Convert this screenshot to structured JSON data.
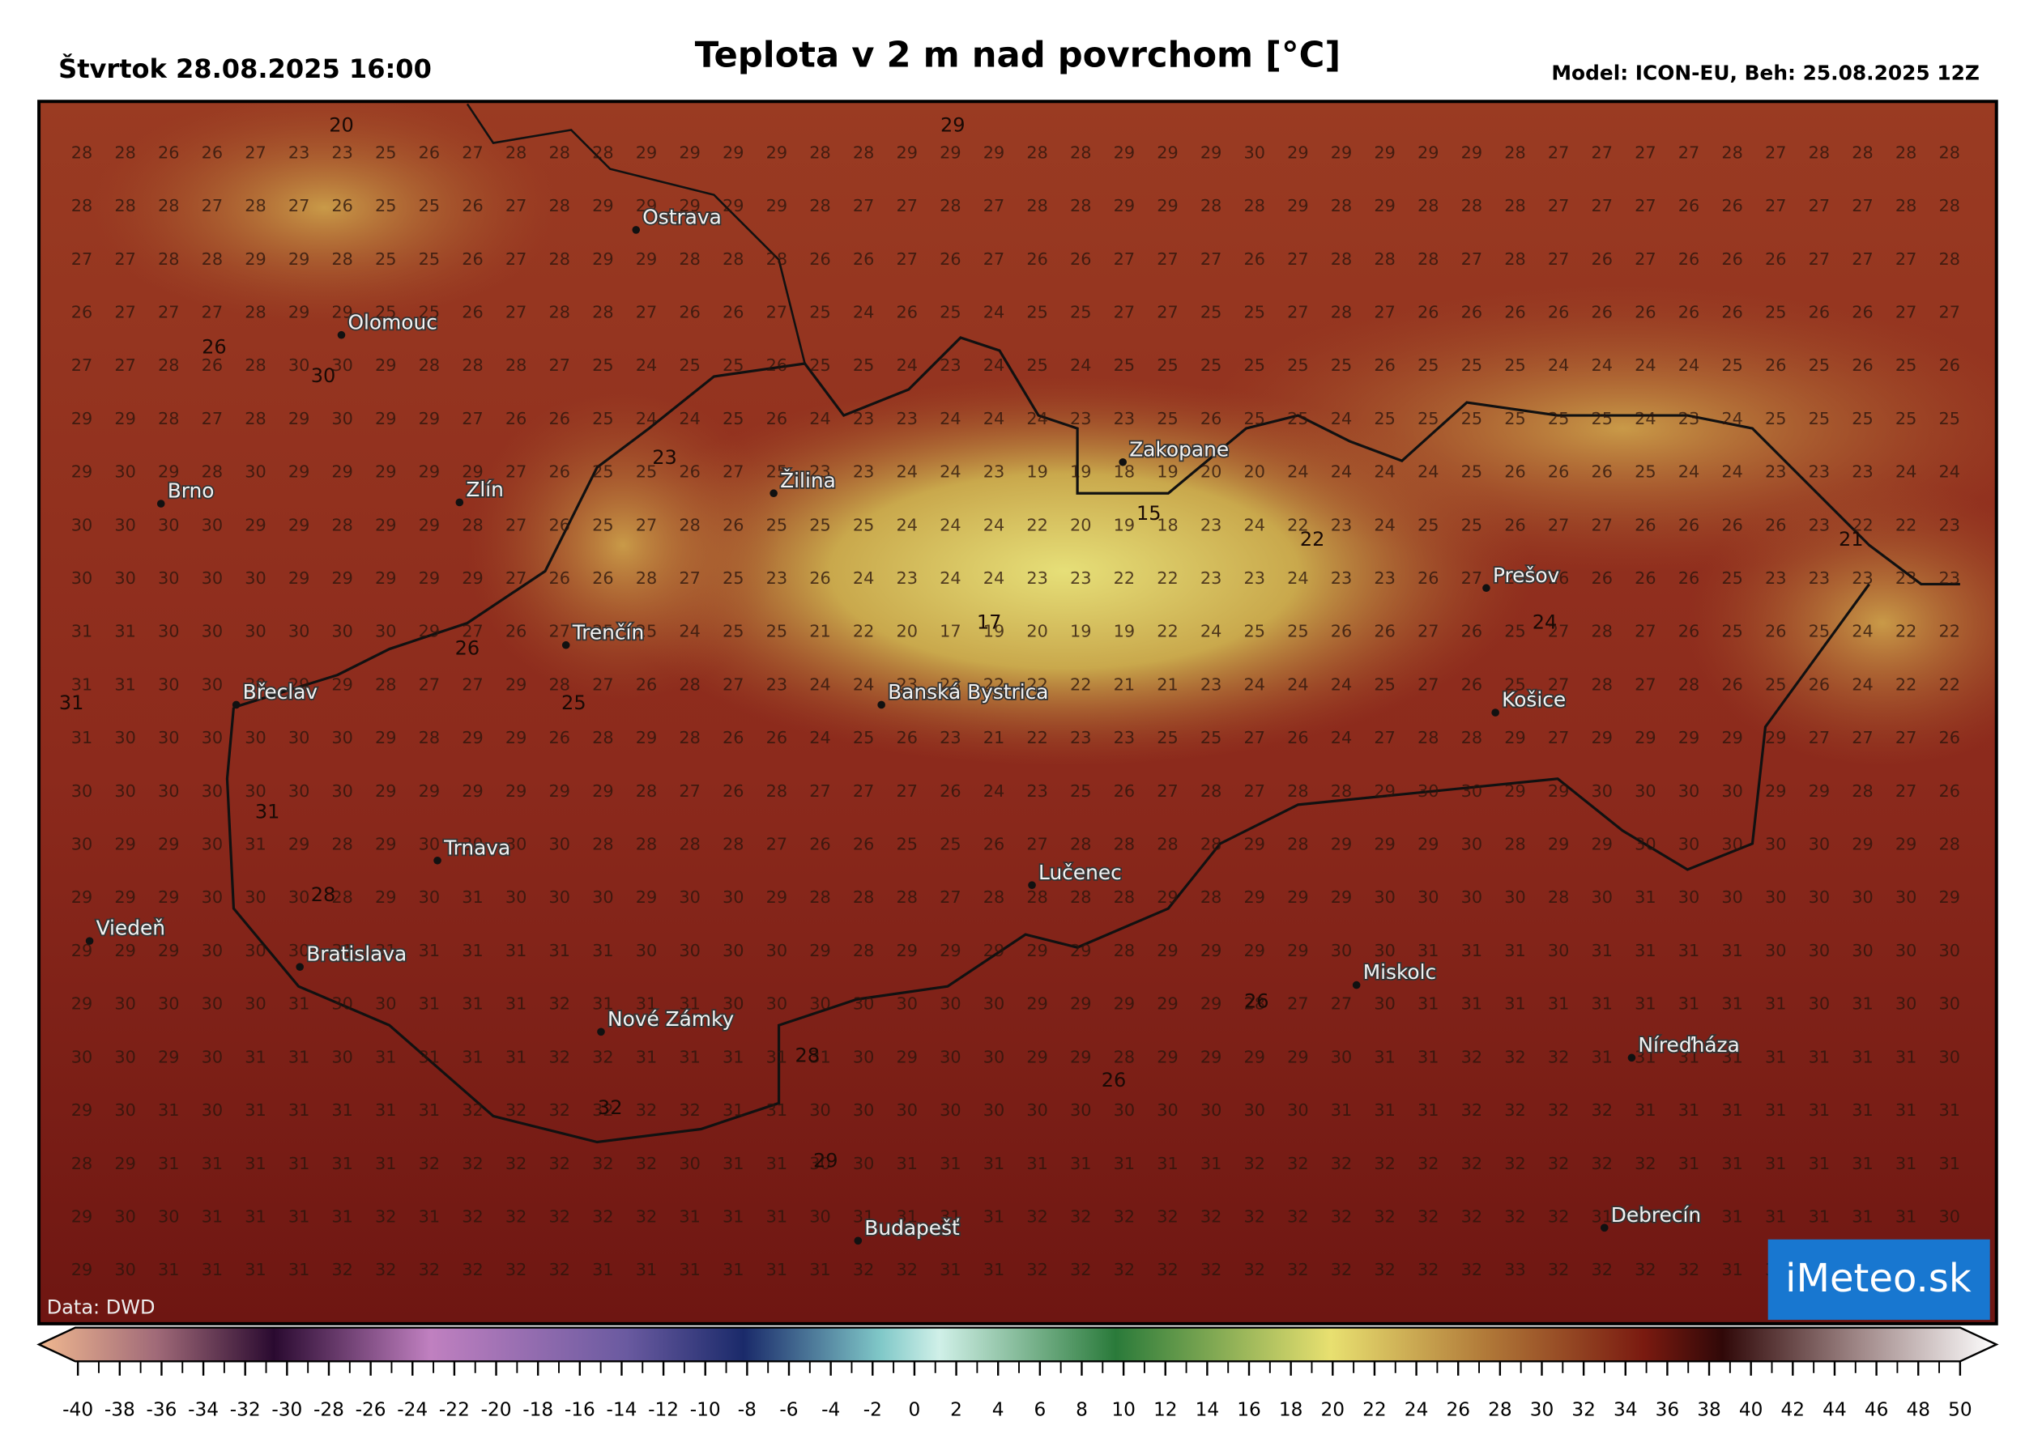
{
  "header": {
    "date": "Štvrtok 28.08.2025 16:00",
    "title": "Teplota v 2 m nad povrchom [°C]",
    "model": "Model: ICON-EU, Beh: 25.08.2025 12Z"
  },
  "map": {
    "grid": [
      [
        28,
        28,
        26,
        26,
        27,
        23,
        23,
        25,
        26,
        27,
        28,
        28,
        28,
        29,
        29,
        29,
        29,
        28,
        28,
        29,
        29,
        29,
        28,
        28,
        29,
        29,
        29,
        30,
        29,
        29,
        29,
        29,
        29,
        28,
        27,
        27,
        27,
        27,
        28,
        27,
        28,
        28,
        28,
        28
      ],
      [
        28,
        28,
        28,
        27,
        28,
        27,
        26,
        25,
        25,
        26,
        27,
        28,
        29,
        29,
        29,
        29,
        29,
        28,
        27,
        27,
        28,
        27,
        28,
        28,
        29,
        29,
        28,
        28,
        29,
        28,
        29,
        28,
        28,
        28,
        27,
        27,
        27,
        26,
        26,
        27,
        27,
        27,
        28,
        28
      ],
      [
        27,
        27,
        28,
        28,
        29,
        29,
        28,
        25,
        25,
        26,
        27,
        28,
        29,
        29,
        28,
        28,
        28,
        26,
        26,
        27,
        26,
        27,
        26,
        26,
        27,
        27,
        27,
        26,
        27,
        28,
        28,
        28,
        27,
        28,
        27,
        26,
        27,
        26,
        26,
        26,
        27,
        27,
        27,
        28
      ],
      [
        26,
        27,
        27,
        27,
        28,
        29,
        29,
        25,
        25,
        26,
        27,
        28,
        28,
        27,
        26,
        26,
        27,
        25,
        24,
        26,
        25,
        24,
        25,
        25,
        27,
        27,
        25,
        25,
        27,
        28,
        27,
        26,
        26,
        26,
        26,
        26,
        26,
        26,
        26,
        25,
        26,
        26,
        27,
        27
      ],
      [
        27,
        27,
        28,
        26,
        28,
        30,
        30,
        29,
        28,
        28,
        28,
        27,
        25,
        24,
        25,
        25,
        26,
        25,
        25,
        24,
        23,
        24,
        25,
        24,
        25,
        25,
        25,
        25,
        25,
        25,
        26,
        25,
        25,
        25,
        24,
        24,
        24,
        24,
        25,
        26,
        25,
        26,
        25,
        26
      ],
      [
        29,
        29,
        28,
        27,
        28,
        29,
        30,
        29,
        29,
        27,
        26,
        26,
        25,
        24,
        24,
        25,
        26,
        24,
        23,
        23,
        24,
        24,
        24,
        23,
        23,
        25,
        26,
        25,
        25,
        24,
        25,
        25,
        25,
        25,
        25,
        25,
        24,
        23,
        24,
        25,
        25,
        25,
        25,
        25
      ],
      [
        29,
        30,
        29,
        28,
        30,
        29,
        29,
        29,
        29,
        29,
        27,
        26,
        25,
        25,
        26,
        27,
        25,
        23,
        23,
        24,
        24,
        23,
        19,
        19,
        18,
        19,
        20,
        20,
        24,
        24,
        24,
        24,
        25,
        26,
        26,
        26,
        25,
        24,
        24,
        23,
        23,
        23,
        24,
        24
      ],
      [
        30,
        30,
        30,
        30,
        29,
        29,
        28,
        29,
        29,
        28,
        27,
        26,
        25,
        27,
        28,
        26,
        25,
        25,
        25,
        24,
        24,
        24,
        22,
        20,
        19,
        18,
        23,
        24,
        22,
        23,
        24,
        25,
        25,
        26,
        27,
        27,
        26,
        26,
        26,
        26,
        23,
        22,
        22,
        23
      ],
      [
        30,
        30,
        30,
        30,
        30,
        29,
        29,
        29,
        29,
        29,
        27,
        26,
        26,
        28,
        27,
        25,
        23,
        26,
        24,
        23,
        24,
        24,
        23,
        23,
        22,
        22,
        23,
        23,
        24,
        23,
        23,
        26,
        27,
        26,
        26,
        26,
        26,
        26,
        25,
        23,
        23,
        23,
        23,
        23
      ],
      [
        31,
        31,
        30,
        30,
        30,
        30,
        30,
        30,
        29,
        27,
        26,
        27,
        25,
        25,
        24,
        25,
        25,
        21,
        22,
        20,
        17,
        19,
        20,
        19,
        19,
        22,
        24,
        25,
        25,
        26,
        26,
        27,
        26,
        25,
        27,
        28,
        27,
        26,
        25,
        26,
        25,
        24,
        22,
        22
      ],
      [
        31,
        31,
        30,
        30,
        30,
        29,
        29,
        28,
        27,
        27,
        29,
        28,
        27,
        26,
        28,
        27,
        23,
        24,
        24,
        23,
        23,
        22,
        22,
        22,
        21,
        21,
        23,
        24,
        24,
        24,
        25,
        27,
        26,
        25,
        27,
        28,
        27,
        28,
        26,
        25,
        26,
        24,
        22,
        22
      ],
      [
        31,
        30,
        30,
        30,
        30,
        30,
        30,
        29,
        28,
        29,
        29,
        26,
        28,
        29,
        28,
        26,
        26,
        24,
        25,
        26,
        23,
        21,
        22,
        23,
        23,
        25,
        25,
        27,
        26,
        24,
        27,
        28,
        28,
        29,
        27,
        29,
        29,
        29,
        29,
        29,
        27,
        27,
        27,
        26
      ],
      [
        30,
        30,
        30,
        30,
        30,
        30,
        30,
        29,
        29,
        29,
        29,
        29,
        29,
        28,
        27,
        26,
        28,
        27,
        27,
        27,
        26,
        24,
        23,
        25,
        26,
        27,
        28,
        27,
        28,
        28,
        29,
        30,
        30,
        29,
        29,
        30,
        30,
        30,
        30,
        29,
        29,
        28,
        27,
        26
      ],
      [
        30,
        29,
        29,
        30,
        31,
        29,
        28,
        29,
        30,
        30,
        30,
        30,
        28,
        28,
        28,
        28,
        27,
        26,
        26,
        25,
        25,
        26,
        27,
        28,
        28,
        28,
        28,
        29,
        28,
        29,
        29,
        29,
        30,
        28,
        29,
        29,
        30,
        30,
        30,
        30,
        30,
        29,
        29,
        28
      ],
      [
        29,
        29,
        29,
        30,
        30,
        30,
        28,
        29,
        30,
        31,
        30,
        30,
        30,
        29,
        30,
        30,
        29,
        28,
        28,
        28,
        27,
        28,
        28,
        28,
        28,
        29,
        28,
        29,
        29,
        29,
        30,
        30,
        30,
        30,
        28,
        30,
        31,
        30,
        30,
        30,
        30,
        30,
        30,
        29
      ],
      [
        29,
        29,
        29,
        30,
        30,
        30,
        31,
        31,
        31,
        31,
        31,
        31,
        31,
        30,
        30,
        30,
        30,
        29,
        28,
        29,
        29,
        29,
        29,
        29,
        28,
        29,
        29,
        29,
        29,
        30,
        30,
        31,
        31,
        31,
        30,
        31,
        31,
        31,
        31,
        30,
        30,
        30,
        30,
        30
      ],
      [
        29,
        30,
        30,
        30,
        30,
        31,
        30,
        30,
        31,
        31,
        31,
        32,
        31,
        31,
        31,
        30,
        30,
        30,
        30,
        30,
        30,
        30,
        29,
        29,
        29,
        29,
        29,
        28,
        27,
        27,
        30,
        31,
        31,
        31,
        31,
        31,
        31,
        31,
        31,
        31,
        30,
        31,
        30,
        30
      ],
      [
        30,
        30,
        29,
        30,
        31,
        31,
        30,
        31,
        31,
        31,
        31,
        32,
        32,
        31,
        31,
        31,
        31,
        31,
        30,
        29,
        30,
        30,
        29,
        29,
        28,
        29,
        29,
        29,
        29,
        30,
        31,
        31,
        32,
        32,
        32,
        31,
        31,
        31,
        31,
        31,
        31,
        31,
        31,
        30
      ],
      [
        29,
        30,
        31,
        30,
        31,
        31,
        31,
        31,
        31,
        32,
        32,
        32,
        32,
        32,
        32,
        31,
        31,
        30,
        30,
        30,
        30,
        30,
        30,
        30,
        30,
        30,
        30,
        30,
        30,
        31,
        31,
        31,
        32,
        32,
        32,
        32,
        31,
        31,
        31,
        31,
        31,
        31,
        31,
        31
      ],
      [
        28,
        29,
        31,
        31,
        31,
        31,
        31,
        31,
        32,
        32,
        32,
        32,
        32,
        32,
        30,
        31,
        31,
        30,
        30,
        31,
        31,
        31,
        31,
        31,
        31,
        31,
        31,
        32,
        32,
        32,
        32,
        32,
        32,
        32,
        32,
        32,
        32,
        31,
        31,
        31,
        31,
        31,
        31,
        31
      ],
      [
        29,
        30,
        30,
        31,
        31,
        31,
        31,
        32,
        31,
        32,
        32,
        32,
        32,
        32,
        31,
        31,
        31,
        30,
        31,
        31,
        31,
        31,
        32,
        32,
        32,
        32,
        32,
        32,
        32,
        32,
        32,
        32,
        32,
        32,
        32,
        31,
        32,
        31,
        31,
        31,
        31,
        31,
        31,
        30
      ],
      [
        29,
        30,
        31,
        31,
        31,
        31,
        32,
        32,
        32,
        32,
        32,
        32,
        31,
        31,
        31,
        31,
        31,
        31,
        32,
        32,
        31,
        31,
        32,
        32,
        32,
        32,
        32,
        32,
        32,
        32,
        32,
        32,
        32,
        33,
        32,
        32,
        32,
        32,
        31,
        31
      ]
    ],
    "extremes": [
      20,
      29,
      26,
      30,
      23,
      15,
      22,
      21,
      17,
      24,
      26,
      31,
      25,
      31,
      28,
      26,
      28,
      26,
      32,
      29
    ],
    "cities": [
      "Ostrava",
      "Olomouc",
      "Brno",
      "Zlín",
      "Žilina",
      "Zakopane",
      "Trenčín",
      "Prešov",
      "Břeclav",
      "Banská Bystrica",
      "Košice",
      "Trnava",
      "Lučenec",
      "Viedeň",
      "Bratislava",
      "Miskolc",
      "Nové Zámky",
      "Níreďháza",
      "Debrecín",
      "Budapešť"
    ]
  },
  "colorbar": {
    "ticks": [
      -40,
      -38,
      -36,
      -34,
      -32,
      -30,
      -28,
      -26,
      -24,
      -22,
      -20,
      -18,
      -16,
      -14,
      -12,
      -10,
      -8,
      -6,
      -4,
      -2,
      0,
      2,
      4,
      6,
      8,
      10,
      12,
      14,
      16,
      18,
      20,
      22,
      24,
      26,
      28,
      30,
      32,
      34,
      36,
      38,
      40,
      42,
      44,
      46,
      48,
      50
    ]
  },
  "footer": {
    "source": "Data: DWD",
    "logo": "iMeteo.sk"
  }
}
